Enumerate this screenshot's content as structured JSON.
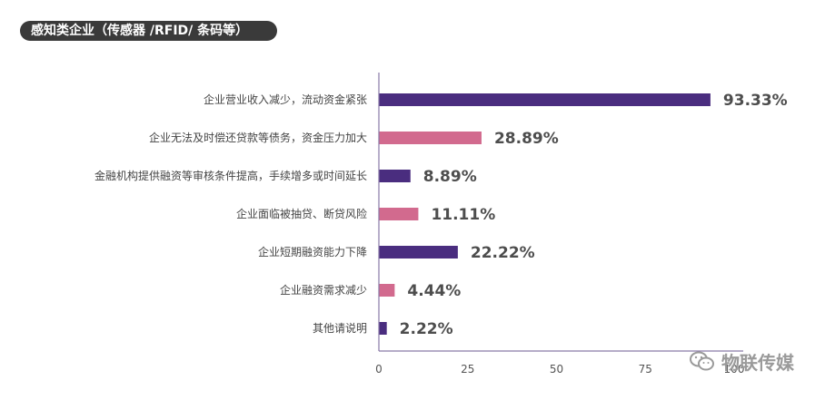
{
  "header": {
    "title": "感知类企业（传感器 /RFID/ 条码等）"
  },
  "watermark": {
    "text": "物联传媒",
    "icon": "wechat-icon"
  },
  "colors": {
    "purple": "#4a2d7f",
    "pink": "#d26a8e",
    "axis": "#8a7aa8",
    "title_bg": "#3a3a3a"
  },
  "chart_data": {
    "type": "bar",
    "orientation": "horizontal",
    "categories": [
      "企业营业收入减少，流动资金紧张",
      "企业无法及时偿还贷款等债务，资金压力加大",
      "金融机构提供融资等审核条件提高，手续增多或时间延长",
      "企业面临被抽贷、断贷风险",
      "企业短期融资能力下降",
      "企业融资需求减少",
      "其他请说明"
    ],
    "values": [
      93.33,
      28.89,
      8.89,
      11.11,
      22.22,
      4.44,
      2.22
    ],
    "value_labels": [
      "93.33%",
      "28.89%",
      "8.89%",
      "11.11%",
      "22.22%",
      "4.44%",
      "2.22%"
    ],
    "bar_colors": [
      "#4a2d7f",
      "#d26a8e",
      "#4a2d7f",
      "#d26a8e",
      "#4a2d7f",
      "#d26a8e",
      "#4a2d7f"
    ],
    "xticks": [
      0,
      25,
      50,
      75,
      100
    ],
    "xtick_labels": [
      "0",
      "25",
      "50",
      "75",
      "100"
    ],
    "xlim": [
      0,
      100
    ],
    "title": "感知类企业（传感器 /RFID/ 条码等）",
    "xlabel": "",
    "ylabel": "",
    "grid": false,
    "legend": "none"
  }
}
